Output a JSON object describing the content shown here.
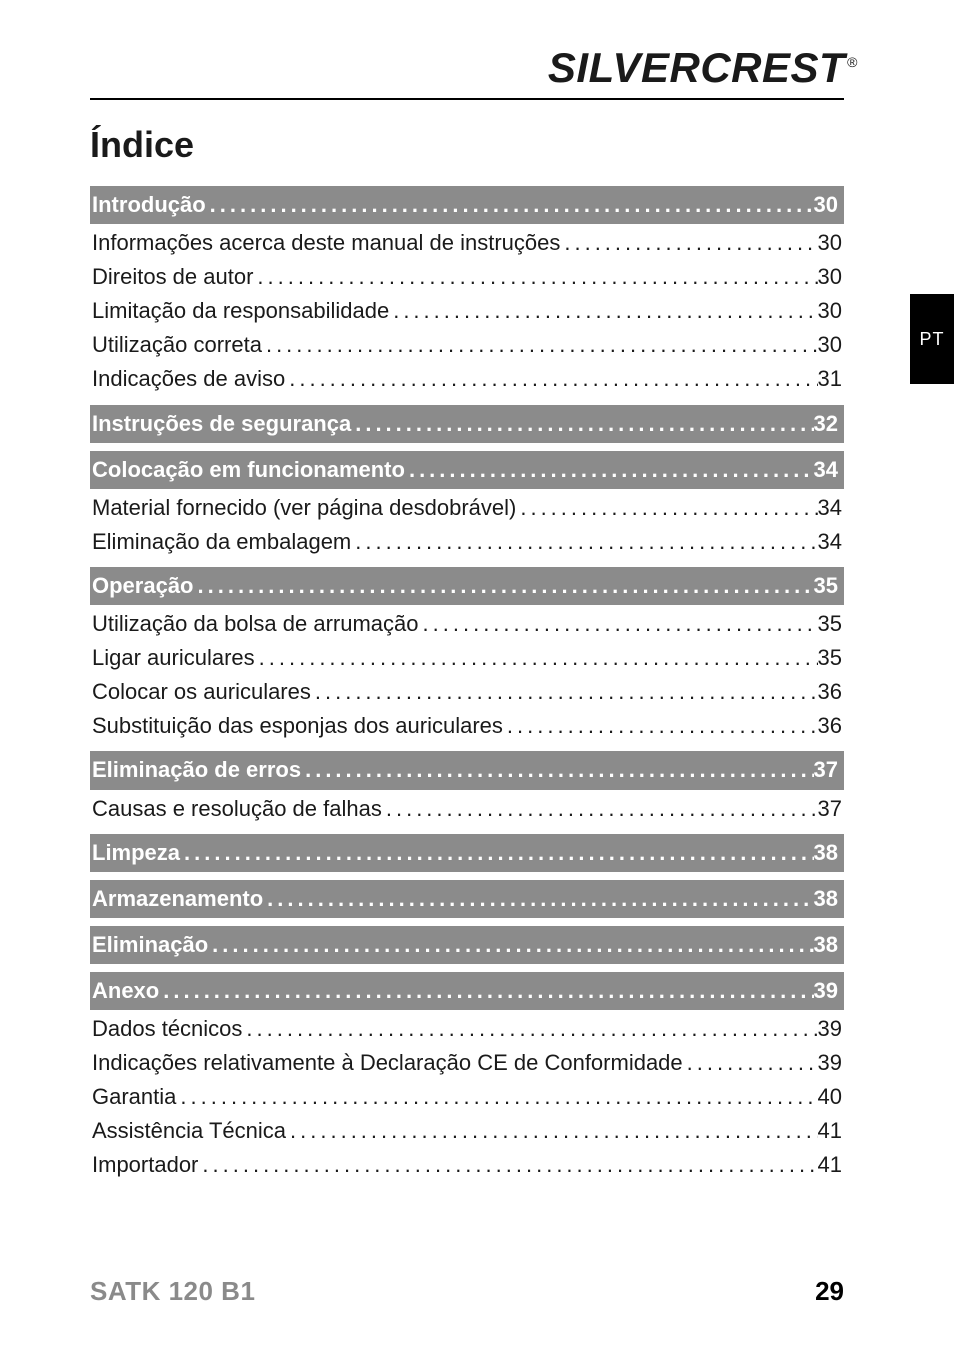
{
  "brand": {
    "word1": "SILVER",
    "word2": "CREST",
    "reg": "®"
  },
  "title": "Índice",
  "side_tab": "PT",
  "footer": {
    "model": "SATK 120 B1",
    "page": "29"
  },
  "colors": {
    "section_bg": "#8b8b8b",
    "section_fg": "#ffffff",
    "text": "#1a1a1a",
    "rule": "#000000",
    "footer_model": "#8a8a8a",
    "side_tab_bg": "#000000",
    "side_tab_fg": "#ffffff",
    "page_bg": "#ffffff"
  },
  "typography": {
    "brand_fontsize": 42,
    "title_fontsize": 36,
    "toc_fontsize": 22,
    "footer_fontsize": 26,
    "side_tab_fontsize": 18
  },
  "toc": [
    {
      "type": "section",
      "label": "Introdução",
      "page": "30"
    },
    {
      "type": "entry",
      "label": "Informações acerca deste manual de instruções",
      "page": "30"
    },
    {
      "type": "entry",
      "label": "Direitos de autor",
      "page": "30"
    },
    {
      "type": "entry",
      "label": "Limitação da responsabilidade",
      "page": "30"
    },
    {
      "type": "entry",
      "label": "Utilização correta",
      "page": "30"
    },
    {
      "type": "entry",
      "label": "Indicações de aviso",
      "page": "31"
    },
    {
      "type": "section",
      "label": "Instruções de segurança",
      "page": "32"
    },
    {
      "type": "section",
      "label": "Colocação em funcionamento",
      "page": "34"
    },
    {
      "type": "entry",
      "label": "Material fornecido (ver página desdobrável)",
      "page": "34"
    },
    {
      "type": "entry",
      "label": "Eliminação da embalagem",
      "page": "34"
    },
    {
      "type": "section",
      "label": "Operação",
      "page": "35"
    },
    {
      "type": "entry",
      "label": "Utilização da bolsa de arrumação",
      "page": "35"
    },
    {
      "type": "entry",
      "label": "Ligar auriculares",
      "page": "35"
    },
    {
      "type": "entry",
      "label": "Colocar os auriculares",
      "page": "36"
    },
    {
      "type": "entry",
      "label": "Substituição das esponjas dos auriculares",
      "page": "36"
    },
    {
      "type": "section",
      "label": "Eliminação de erros",
      "page": "37"
    },
    {
      "type": "entry",
      "label": "Causas e resolução de falhas",
      "page": "37"
    },
    {
      "type": "section",
      "label": "Limpeza",
      "page": "38"
    },
    {
      "type": "section",
      "label": "Armazenamento",
      "page": "38"
    },
    {
      "type": "section",
      "label": "Eliminação",
      "page": "38"
    },
    {
      "type": "section",
      "label": "Anexo",
      "page": "39"
    },
    {
      "type": "entry",
      "label": "Dados técnicos",
      "page": "39"
    },
    {
      "type": "entry",
      "label": "Indicações relativamente à Declaração CE de Conformidade",
      "page": "39"
    },
    {
      "type": "entry",
      "label": "Garantia",
      "page": "40"
    },
    {
      "type": "entry",
      "label": "Assistência Técnica",
      "page": "41"
    },
    {
      "type": "entry",
      "label": "Importador",
      "page": "41"
    }
  ]
}
